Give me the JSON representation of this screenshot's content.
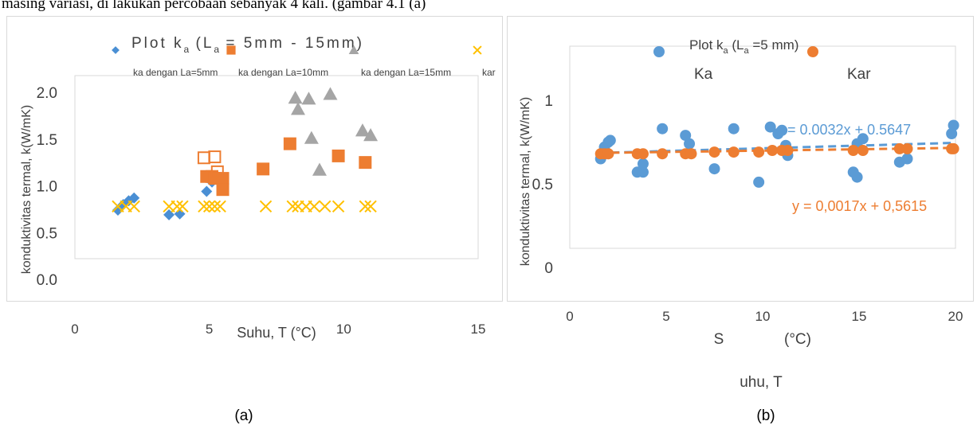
{
  "document": {
    "top_text": "masing variasi, di lakukan percobaan sebanyak 4 kali. (gambar 4.1 (a)",
    "caption_a": "(a)",
    "caption_b": "(b)"
  },
  "chart_data": [
    {
      "type": "scatter",
      "title": "Plot k",
      "title_sub": "a",
      "title_tail": " (L = 5mm - 15mm)",
      "title_tail_sub": "a",
      "xlabel": "Suhu, T (°C)",
      "ylabel": "konduktivitas termal, k(W/mK)",
      "xlim": [
        0,
        15
      ],
      "ylim": [
        0.0,
        2.0
      ],
      "x_ticks": [
        "0",
        "5",
        "10",
        "15"
      ],
      "y_ticks": [
        "0.0",
        "0.5",
        "1.0",
        "1.5",
        "2.0"
      ],
      "grid": false,
      "legend_position": "top",
      "series": [
        {
          "name": "ka dengan La=5mm",
          "marker": "diamond",
          "color": "#4a8fd4",
          "points": [
            [
              1.6,
              0.74
            ],
            [
              1.8,
              0.8
            ],
            [
              2.0,
              0.84
            ],
            [
              2.2,
              0.87
            ],
            [
              3.5,
              0.69
            ],
            [
              3.9,
              0.7
            ],
            [
              4.9,
              0.94
            ],
            [
              5.1,
              1.04
            ]
          ]
        },
        {
          "name": "ka dengan La=10mm",
          "marker": "square",
          "color": "#ed7d31",
          "points": [
            [
              4.9,
              1.1
            ],
            [
              5.1,
              1.1
            ],
            [
              5.2,
              1.08
            ],
            [
              5.5,
              1.08
            ],
            [
              5.5,
              0.96
            ],
            [
              7.0,
              1.18
            ],
            [
              8.0,
              1.45
            ],
            [
              9.8,
              1.32
            ],
            [
              10.8,
              1.25
            ]
          ]
        },
        {
          "name": "ka dengan La=10mm (open)",
          "marker": "square-open",
          "color": "#ed7d31",
          "points": [
            [
              4.8,
              1.3
            ],
            [
              5.2,
              1.31
            ],
            [
              5.3,
              1.15
            ]
          ]
        },
        {
          "name": "ka dengan La=15mm",
          "marker": "triangle",
          "color": "#a5a5a5",
          "points": [
            [
              8.2,
              1.94
            ],
            [
              8.3,
              1.82
            ],
            [
              8.7,
              1.93
            ],
            [
              8.8,
              1.51
            ],
            [
              9.1,
              1.17
            ],
            [
              9.5,
              1.98
            ],
            [
              10.7,
              1.59
            ],
            [
              11.0,
              1.54
            ]
          ]
        },
        {
          "name": "kar",
          "marker": "x",
          "color": "#ffc000",
          "points": [
            [
              1.6,
              0.78
            ],
            [
              1.9,
              0.78
            ],
            [
              2.2,
              0.78
            ],
            [
              3.5,
              0.78
            ],
            [
              3.8,
              0.78
            ],
            [
              4.0,
              0.78
            ],
            [
              4.8,
              0.78
            ],
            [
              5.0,
              0.78
            ],
            [
              5.2,
              0.78
            ],
            [
              5.4,
              0.78
            ],
            [
              7.1,
              0.78
            ],
            [
              8.1,
              0.78
            ],
            [
              8.3,
              0.78
            ],
            [
              8.6,
              0.78
            ],
            [
              8.9,
              0.78
            ],
            [
              9.3,
              0.78
            ],
            [
              9.8,
              0.78
            ],
            [
              10.8,
              0.78
            ],
            [
              11.0,
              0.78
            ]
          ]
        }
      ]
    },
    {
      "type": "scatter",
      "title": "Plot k",
      "title_sub": "a",
      "title_tail": " (L =5 mm)",
      "title_tail_sub": "a",
      "xlabel_part1": "S",
      "xlabel_part2": "(°C)",
      "xlabel_part3": "uhu, T",
      "ylabel": "konduktivitas termal, k(W/mK)",
      "xlim": [
        0,
        20
      ],
      "ylim": [
        0,
        1.3
      ],
      "x_ticks": [
        "0",
        "5",
        "10",
        "15",
        "20"
      ],
      "y_ticks": [
        "0",
        "0.5",
        "1"
      ],
      "grid": false,
      "legend_position": "top",
      "series": [
        {
          "name": "Ka",
          "marker": "circle",
          "color": "#5b9bd5",
          "points": [
            [
              1.6,
              0.65
            ],
            [
              1.8,
              0.72
            ],
            [
              2.0,
              0.75
            ],
            [
              2.1,
              0.76
            ],
            [
              3.5,
              0.57
            ],
            [
              3.8,
              0.57
            ],
            [
              3.8,
              0.62
            ],
            [
              4.8,
              0.83
            ],
            [
              6.0,
              0.79
            ],
            [
              6.2,
              0.74
            ],
            [
              7.5,
              0.59
            ],
            [
              8.5,
              0.83
            ],
            [
              9.8,
              0.51
            ],
            [
              10.4,
              0.84
            ],
            [
              10.8,
              0.8
            ],
            [
              11.0,
              0.82
            ],
            [
              11.2,
              0.73
            ],
            [
              11.3,
              0.67
            ],
            [
              14.7,
              0.57
            ],
            [
              14.9,
              0.54
            ],
            [
              14.9,
              0.74
            ],
            [
              15.2,
              0.77
            ],
            [
              17.1,
              0.63
            ],
            [
              17.5,
              0.65
            ],
            [
              19.8,
              0.8
            ],
            [
              19.9,
              0.85
            ]
          ],
          "trendline": {
            "slope": 0.0032,
            "intercept": 0.5647,
            "label": "= 0.0032x + 0.5647"
          }
        },
        {
          "name": "Kar",
          "marker": "circle",
          "color": "#ed7d31",
          "points": [
            [
              1.6,
              0.68
            ],
            [
              1.8,
              0.68
            ],
            [
              2.0,
              0.68
            ],
            [
              3.5,
              0.68
            ],
            [
              3.8,
              0.68
            ],
            [
              4.8,
              0.68
            ],
            [
              6.0,
              0.68
            ],
            [
              6.3,
              0.68
            ],
            [
              7.5,
              0.69
            ],
            [
              8.5,
              0.69
            ],
            [
              9.8,
              0.69
            ],
            [
              10.5,
              0.7
            ],
            [
              11.0,
              0.7
            ],
            [
              11.3,
              0.7
            ],
            [
              14.7,
              0.7
            ],
            [
              15.2,
              0.7
            ],
            [
              17.1,
              0.71
            ],
            [
              17.5,
              0.71
            ],
            [
              19.8,
              0.71
            ],
            [
              19.9,
              0.71
            ]
          ],
          "trendline": {
            "slope": 0.0017,
            "intercept": 0.5615,
            "label": "y = 0,0017x + 0,5615"
          }
        }
      ]
    }
  ]
}
